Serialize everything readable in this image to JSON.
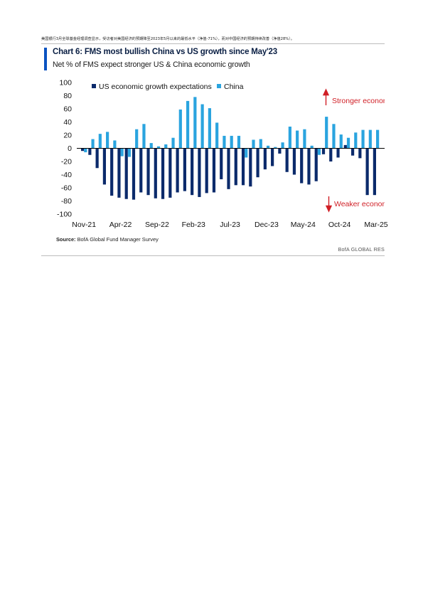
{
  "intro_text": "美国银行3月全球基金经理调查显示，受访者对美国经济的预期降至2023年5月以来的最低水平（净值-71%），而对中国经济的预期持续改善（净值28%）。",
  "source_label": "Source:",
  "source_text": "BofA Global Fund Manager Survey",
  "brand": "BofA GLOBAL RES",
  "colors": {
    "us": "#0b2a6b",
    "china": "#2aa4df",
    "accent": "#0b53c1",
    "annotation": "#d01f26"
  },
  "chart_data": {
    "type": "bar",
    "title": "Chart 6: FMS most bullish China vs US growth since May'23",
    "subtitle": "Net % of FMS expect stronger US & China economic growth",
    "xlabel": "",
    "ylabel": "",
    "ylim": [
      -100,
      100
    ],
    "yticks": [
      100,
      80,
      60,
      40,
      20,
      0,
      -20,
      -40,
      -60,
      -80,
      -100
    ],
    "x_tick_labels": [
      "Nov-21",
      "Apr-22",
      "Sep-22",
      "Feb-23",
      "Jul-23",
      "Dec-23",
      "May-24",
      "Oct-24",
      "Mar-25"
    ],
    "x_tick_index": [
      0,
      5,
      10,
      15,
      20,
      25,
      30,
      35,
      40
    ],
    "legend_position": "top-left",
    "grid": false,
    "annotations": {
      "stronger": "Stronger econom",
      "weaker": "Weaker econom"
    },
    "categories": [
      "Nov-21",
      "Dec-21",
      "Jan-22",
      "Feb-22",
      "Mar-22",
      "Apr-22",
      "May-22",
      "Jun-22",
      "Jul-22",
      "Aug-22",
      "Sep-22",
      "Oct-22",
      "Nov-22",
      "Dec-22",
      "Jan-23",
      "Feb-23",
      "Mar-23",
      "Apr-23",
      "May-23",
      "Jun-23",
      "Jul-23",
      "Aug-23",
      "Sep-23",
      "Oct-23",
      "Nov-23",
      "Dec-23",
      "Jan-24",
      "Feb-24",
      "Mar-24",
      "Apr-24",
      "May-24",
      "Jun-24",
      "Jul-24",
      "Aug-24",
      "Sep-24",
      "Oct-24",
      "Nov-24",
      "Dec-24",
      "Jan-25",
      "Feb-25",
      "Mar-25"
    ],
    "series": [
      {
        "name": "US economic growth expectations",
        "values": [
          -4,
          -10,
          -30,
          -55,
          -72,
          -75,
          -77,
          -78,
          -67,
          -71,
          -76,
          -77,
          -75,
          -67,
          -65,
          -71,
          -74,
          -68,
          -67,
          -47,
          -62,
          -56,
          -56,
          -58,
          -44,
          -32,
          -27,
          -8,
          -36,
          -40,
          -53,
          -55,
          -50,
          -9,
          -20,
          -14,
          5,
          -11,
          -15,
          -71,
          -71
        ]
      },
      {
        "name": "China",
        "values": [
          -6,
          14,
          22,
          25,
          12,
          -12,
          -13,
          29,
          37,
          8,
          3,
          6,
          16,
          59,
          72,
          78,
          67,
          61,
          39,
          19,
          19,
          19,
          -14,
          13,
          14,
          4,
          2,
          9,
          33,
          27,
          29,
          4,
          -10,
          48,
          37,
          21,
          16,
          24,
          28,
          28,
          28
        ]
      }
    ]
  }
}
